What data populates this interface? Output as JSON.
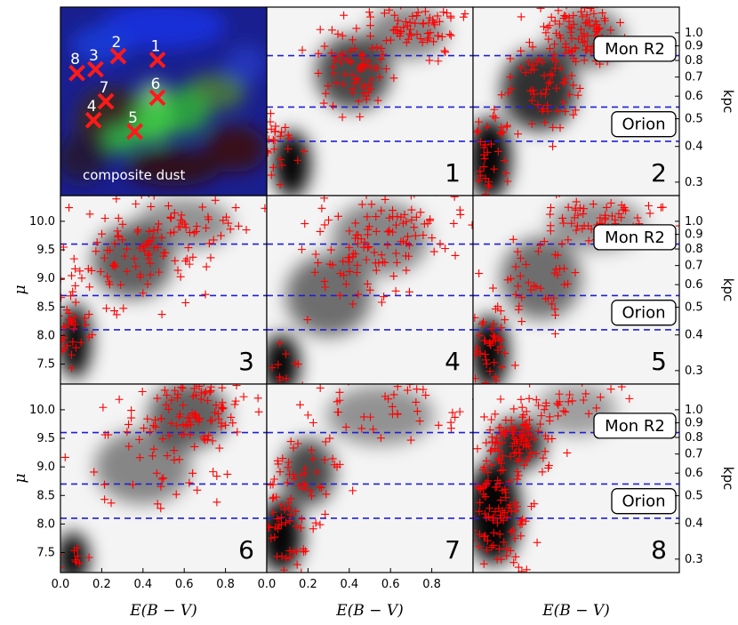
{
  "figure": {
    "composite_label": "composite dust",
    "region_labels": [
      "Mon R2",
      "Orion"
    ],
    "x_label": "E(B − V)",
    "y_label": "μ",
    "right_axis_label": "kpc"
  },
  "colors": {
    "markers": "#ff0000",
    "dashed_lines": "#1f1fd6",
    "density_map": "grayscale (white = low, black = high)"
  },
  "composite_map": {
    "description_colors": [
      "blue",
      "green",
      "red"
    ],
    "markers": [
      {
        "id": "1",
        "x": 0.47,
        "y": 0.28
      },
      {
        "id": "2",
        "x": 0.28,
        "y": 0.26
      },
      {
        "id": "3",
        "x": 0.17,
        "y": 0.33
      },
      {
        "id": "4",
        "x": 0.16,
        "y": 0.6
      },
      {
        "id": "5",
        "x": 0.36,
        "y": 0.66
      },
      {
        "id": "6",
        "x": 0.47,
        "y": 0.48
      },
      {
        "id": "7",
        "x": 0.22,
        "y": 0.5
      },
      {
        "id": "8",
        "x": 0.08,
        "y": 0.35
      }
    ]
  },
  "chart_data": {
    "type": "scatter",
    "panels": [
      "1",
      "2",
      "3",
      "4",
      "5",
      "6",
      "7",
      "8"
    ],
    "x_axis": {
      "label": "E(B − V)",
      "range": [
        0.0,
        1.0
      ],
      "ticks": [
        "0.0",
        "0.2",
        "0.4",
        "0.6",
        "0.8"
      ]
    },
    "y_axis": {
      "label": "μ",
      "range": [
        7.15,
        10.45
      ],
      "ticks": [
        "7.5",
        "8.0",
        "8.5",
        "9.0",
        "9.5",
        "10.0"
      ]
    },
    "right_axis": {
      "label": "kpc",
      "ticks": [
        "0.3",
        "0.4",
        "0.5",
        "0.6",
        "0.7",
        "0.8",
        "0.9",
        "1.0"
      ]
    },
    "dashed_lines_mu": [
      9.6,
      8.7,
      8.1
    ],
    "region_labels": [
      {
        "text": "Mon R2",
        "mu": 9.72
      },
      {
        "text": "Orion",
        "mu": 8.4
      }
    ],
    "panel_data": [
      {
        "id": "1",
        "blobs": [
          {
            "x": 0.12,
            "y": 7.7,
            "sx": 0.07,
            "sy": 0.45,
            "a": 0.98
          },
          {
            "x": 0.42,
            "y": 9.3,
            "sx": 0.14,
            "sy": 0.5,
            "a": 0.7
          },
          {
            "x": 0.68,
            "y": 10.0,
            "sx": 0.15,
            "sy": 0.35,
            "a": 0.45
          }
        ],
        "stars": [
          {
            "x": 0.05,
            "y": 8.0,
            "sx": 0.05,
            "sy": 0.3,
            "n": 30
          },
          {
            "x": 0.42,
            "y": 9.45,
            "sx": 0.1,
            "sy": 0.4,
            "n": 75
          },
          {
            "x": 0.75,
            "y": 10.15,
            "sx": 0.15,
            "sy": 0.25,
            "n": 70
          }
        ]
      },
      {
        "id": "2",
        "blobs": [
          {
            "x": 0.08,
            "y": 7.8,
            "sx": 0.08,
            "sy": 0.55,
            "a": 0.98
          },
          {
            "x": 0.32,
            "y": 9.0,
            "sx": 0.14,
            "sy": 0.55,
            "a": 0.8
          },
          {
            "x": 0.55,
            "y": 9.9,
            "sx": 0.14,
            "sy": 0.4,
            "a": 0.55
          }
        ],
        "stars": [
          {
            "x": 0.05,
            "y": 7.9,
            "sx": 0.06,
            "sy": 0.4,
            "n": 45
          },
          {
            "x": 0.32,
            "y": 9.0,
            "sx": 0.1,
            "sy": 0.45,
            "n": 60
          },
          {
            "x": 0.52,
            "y": 10.0,
            "sx": 0.1,
            "sy": 0.3,
            "n": 95
          }
        ]
      },
      {
        "id": "3",
        "blobs": [
          {
            "x": 0.07,
            "y": 7.9,
            "sx": 0.06,
            "sy": 0.5,
            "a": 0.98
          },
          {
            "x": 0.35,
            "y": 9.3,
            "sx": 0.15,
            "sy": 0.5,
            "a": 0.6
          },
          {
            "x": 0.6,
            "y": 9.95,
            "sx": 0.18,
            "sy": 0.35,
            "a": 0.4
          }
        ],
        "stars": [
          {
            "x": 0.05,
            "y": 8.2,
            "sx": 0.05,
            "sy": 0.35,
            "n": 40
          },
          {
            "x": 0.38,
            "y": 9.4,
            "sx": 0.15,
            "sy": 0.45,
            "n": 95
          },
          {
            "x": 0.65,
            "y": 10.05,
            "sx": 0.15,
            "sy": 0.25,
            "n": 35
          }
        ]
      },
      {
        "id": "4",
        "blobs": [
          {
            "x": 0.07,
            "y": 7.5,
            "sx": 0.07,
            "sy": 0.4,
            "a": 0.98
          },
          {
            "x": 0.3,
            "y": 8.7,
            "sx": 0.16,
            "sy": 0.55,
            "a": 0.55
          },
          {
            "x": 0.55,
            "y": 9.7,
            "sx": 0.18,
            "sy": 0.5,
            "a": 0.45
          }
        ],
        "stars": [
          {
            "x": 0.1,
            "y": 7.6,
            "sx": 0.06,
            "sy": 0.3,
            "n": 12
          },
          {
            "x": 0.45,
            "y": 9.2,
            "sx": 0.14,
            "sy": 0.35,
            "n": 45
          },
          {
            "x": 0.6,
            "y": 9.95,
            "sx": 0.2,
            "sy": 0.35,
            "n": 80
          }
        ]
      },
      {
        "id": "5",
        "blobs": [
          {
            "x": 0.08,
            "y": 7.7,
            "sx": 0.07,
            "sy": 0.5,
            "a": 0.98
          },
          {
            "x": 0.33,
            "y": 9.0,
            "sx": 0.15,
            "sy": 0.55,
            "a": 0.55
          },
          {
            "x": 0.6,
            "y": 9.95,
            "sx": 0.18,
            "sy": 0.35,
            "a": 0.4
          }
        ],
        "stars": [
          {
            "x": 0.08,
            "y": 7.9,
            "sx": 0.06,
            "sy": 0.35,
            "n": 40
          },
          {
            "x": 0.3,
            "y": 9.0,
            "sx": 0.12,
            "sy": 0.4,
            "n": 45
          },
          {
            "x": 0.62,
            "y": 10.05,
            "sx": 0.15,
            "sy": 0.25,
            "n": 65
          }
        ]
      },
      {
        "id": "6",
        "blobs": [
          {
            "x": 0.06,
            "y": 7.4,
            "sx": 0.06,
            "sy": 0.35,
            "a": 0.98
          },
          {
            "x": 0.4,
            "y": 9.0,
            "sx": 0.18,
            "sy": 0.5,
            "a": 0.45
          },
          {
            "x": 0.62,
            "y": 9.9,
            "sx": 0.15,
            "sy": 0.45,
            "a": 0.6
          }
        ],
        "stars": [
          {
            "x": 0.08,
            "y": 7.4,
            "sx": 0.05,
            "sy": 0.2,
            "n": 12
          },
          {
            "x": 0.45,
            "y": 9.1,
            "sx": 0.2,
            "sy": 0.5,
            "n": 40
          },
          {
            "x": 0.65,
            "y": 10.0,
            "sx": 0.15,
            "sy": 0.35,
            "n": 95
          }
        ]
      },
      {
        "id": "7",
        "blobs": [
          {
            "x": 0.07,
            "y": 7.8,
            "sx": 0.08,
            "sy": 0.5,
            "a": 0.98
          },
          {
            "x": 0.2,
            "y": 8.9,
            "sx": 0.1,
            "sy": 0.45,
            "a": 0.7
          },
          {
            "x": 0.55,
            "y": 9.9,
            "sx": 0.2,
            "sy": 0.4,
            "a": 0.4
          }
        ],
        "stars": [
          {
            "x": 0.1,
            "y": 8.0,
            "sx": 0.07,
            "sy": 0.5,
            "n": 60
          },
          {
            "x": 0.25,
            "y": 9.0,
            "sx": 0.1,
            "sy": 0.4,
            "n": 30
          },
          {
            "x": 0.65,
            "y": 10.0,
            "sx": 0.2,
            "sy": 0.3,
            "n": 40
          }
        ]
      },
      {
        "id": "8",
        "blobs": [
          {
            "x": 0.1,
            "y": 8.2,
            "sx": 0.1,
            "sy": 0.7,
            "a": 0.98
          },
          {
            "x": 0.22,
            "y": 9.4,
            "sx": 0.1,
            "sy": 0.35,
            "a": 0.85
          },
          {
            "x": 0.5,
            "y": 10.0,
            "sx": 0.15,
            "sy": 0.35,
            "a": 0.35
          }
        ],
        "stars": [
          {
            "x": 0.12,
            "y": 8.3,
            "sx": 0.08,
            "sy": 0.6,
            "n": 110
          },
          {
            "x": 0.22,
            "y": 9.5,
            "sx": 0.1,
            "sy": 0.3,
            "n": 80
          },
          {
            "x": 0.45,
            "y": 10.1,
            "sx": 0.15,
            "sy": 0.2,
            "n": 35
          }
        ]
      }
    ],
    "kpc_conversion": "d_kpc = 10^(mu/5 + 1) / 1000"
  }
}
